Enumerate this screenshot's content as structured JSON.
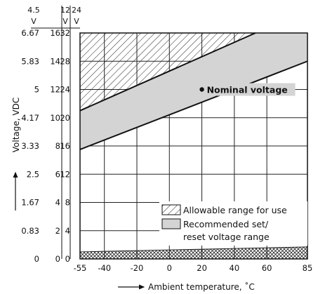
{
  "chart_data": {
    "type": "area",
    "y_axes": [
      {
        "unit": "V",
        "header": "4.5",
        "ticks": [
          "0",
          "0.83",
          "1.67",
          "2.5",
          "3.33",
          "4.17",
          "5",
          "5.83",
          "6.67"
        ]
      },
      {
        "unit": "V",
        "header": "12",
        "ticks": [
          "0",
          "2",
          "4",
          "6",
          "8",
          "10",
          "12",
          "14",
          "16"
        ]
      },
      {
        "unit": "V",
        "header": "24",
        "ticks": [
          "0",
          "4",
          "8",
          "12",
          "16",
          "20",
          "24",
          "28",
          "32"
        ]
      }
    ],
    "ylabel": "Voltage, VDC",
    "xlabel": "Ambient temperature, ˚C",
    "xlim": [
      -55,
      85
    ],
    "ylim": [
      0,
      32
    ],
    "x_ticks": [
      "-55",
      "-40",
      "-20",
      "0",
      "20",
      "40",
      "60",
      "85"
    ],
    "grid": true,
    "series": [
      {
        "name": "Allowable range for use",
        "pattern": "hatched",
        "upper": [
          [
            -55,
            21
          ],
          [
            53,
            32
          ]
        ],
        "lower": [
          [
            -55,
            0
          ],
          [
            85,
            0
          ]
        ]
      },
      {
        "name": "Recommended set/ reset voltage range",
        "fill": "#d4d4d4",
        "upper": [
          [
            -55,
            21
          ],
          [
            53,
            32
          ]
        ],
        "lower": [
          [
            -55,
            15.5
          ],
          [
            85,
            28
          ]
        ]
      },
      {
        "name": "",
        "pattern": "crosshatched",
        "upper": [
          [
            -55,
            1
          ],
          [
            85,
            1.7
          ]
        ],
        "lower": [
          [
            -55,
            0
          ],
          [
            85,
            0
          ]
        ]
      }
    ],
    "annotations": [
      {
        "text": "Nominal voltage",
        "x": 20,
        "y": 24
      }
    ],
    "legend_position": "bottom-right"
  }
}
